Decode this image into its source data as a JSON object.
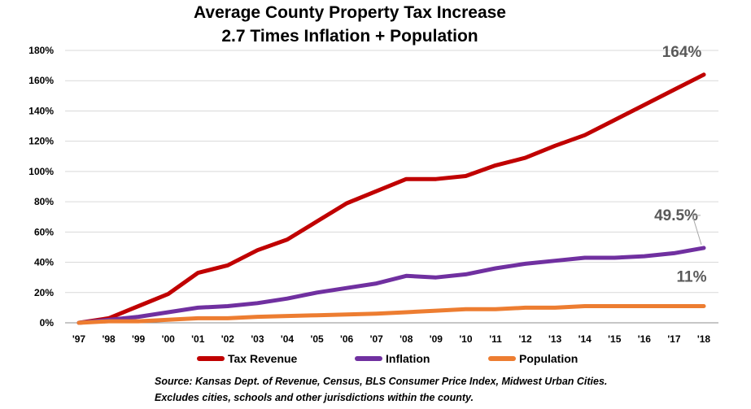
{
  "chart_data": {
    "type": "line",
    "title_line1": "Average County Property Tax Increase",
    "title_line2": "2.7 Times Inflation + Population",
    "categories": [
      "'97",
      "'98",
      "'99",
      "'00",
      "'01",
      "'02",
      "'03",
      "'04",
      "'05",
      "'06",
      "'07",
      "'08",
      "'09",
      "'10",
      "'11",
      "'12",
      "'13",
      "'14",
      "'15",
      "'16",
      "'17",
      "'18"
    ],
    "ylim": [
      0,
      180
    ],
    "yticks": [
      0,
      20,
      40,
      60,
      80,
      100,
      120,
      140,
      160,
      180
    ],
    "ytick_labels": [
      "0%",
      "20%",
      "40%",
      "60%",
      "80%",
      "100%",
      "120%",
      "140%",
      "160%",
      "180%"
    ],
    "grid": true,
    "legend_position": "bottom",
    "series": [
      {
        "name": "Tax Revenue",
        "color": "#C00000",
        "values": [
          0,
          3,
          11,
          19,
          33,
          38,
          48,
          55,
          67,
          79,
          87,
          95,
          95,
          97,
          104,
          109,
          117,
          124,
          134,
          144,
          154,
          164
        ],
        "end_label": "164%"
      },
      {
        "name": "Inflation",
        "color": "#7030A0",
        "values": [
          0,
          2,
          4,
          7,
          10,
          11,
          13,
          16,
          20,
          23,
          26,
          31,
          30,
          32,
          36,
          39,
          41,
          43,
          43,
          44,
          46,
          49.5
        ],
        "end_label": "49.5%"
      },
      {
        "name": "Population",
        "color": "#ED7D31",
        "values": [
          0,
          1,
          1,
          2,
          3,
          3,
          4,
          4.5,
          5,
          5.5,
          6,
          7,
          8,
          9,
          9,
          10,
          10,
          11,
          11,
          11,
          11,
          11
        ],
        "end_label": "11%"
      }
    ]
  },
  "source_line1": "Source: Kansas Dept. of Revenue, Census, BLS Consumer Price Index, Midwest Urban Cities.",
  "source_line2": "Excludes cities, schools and other jurisdictions within the county."
}
